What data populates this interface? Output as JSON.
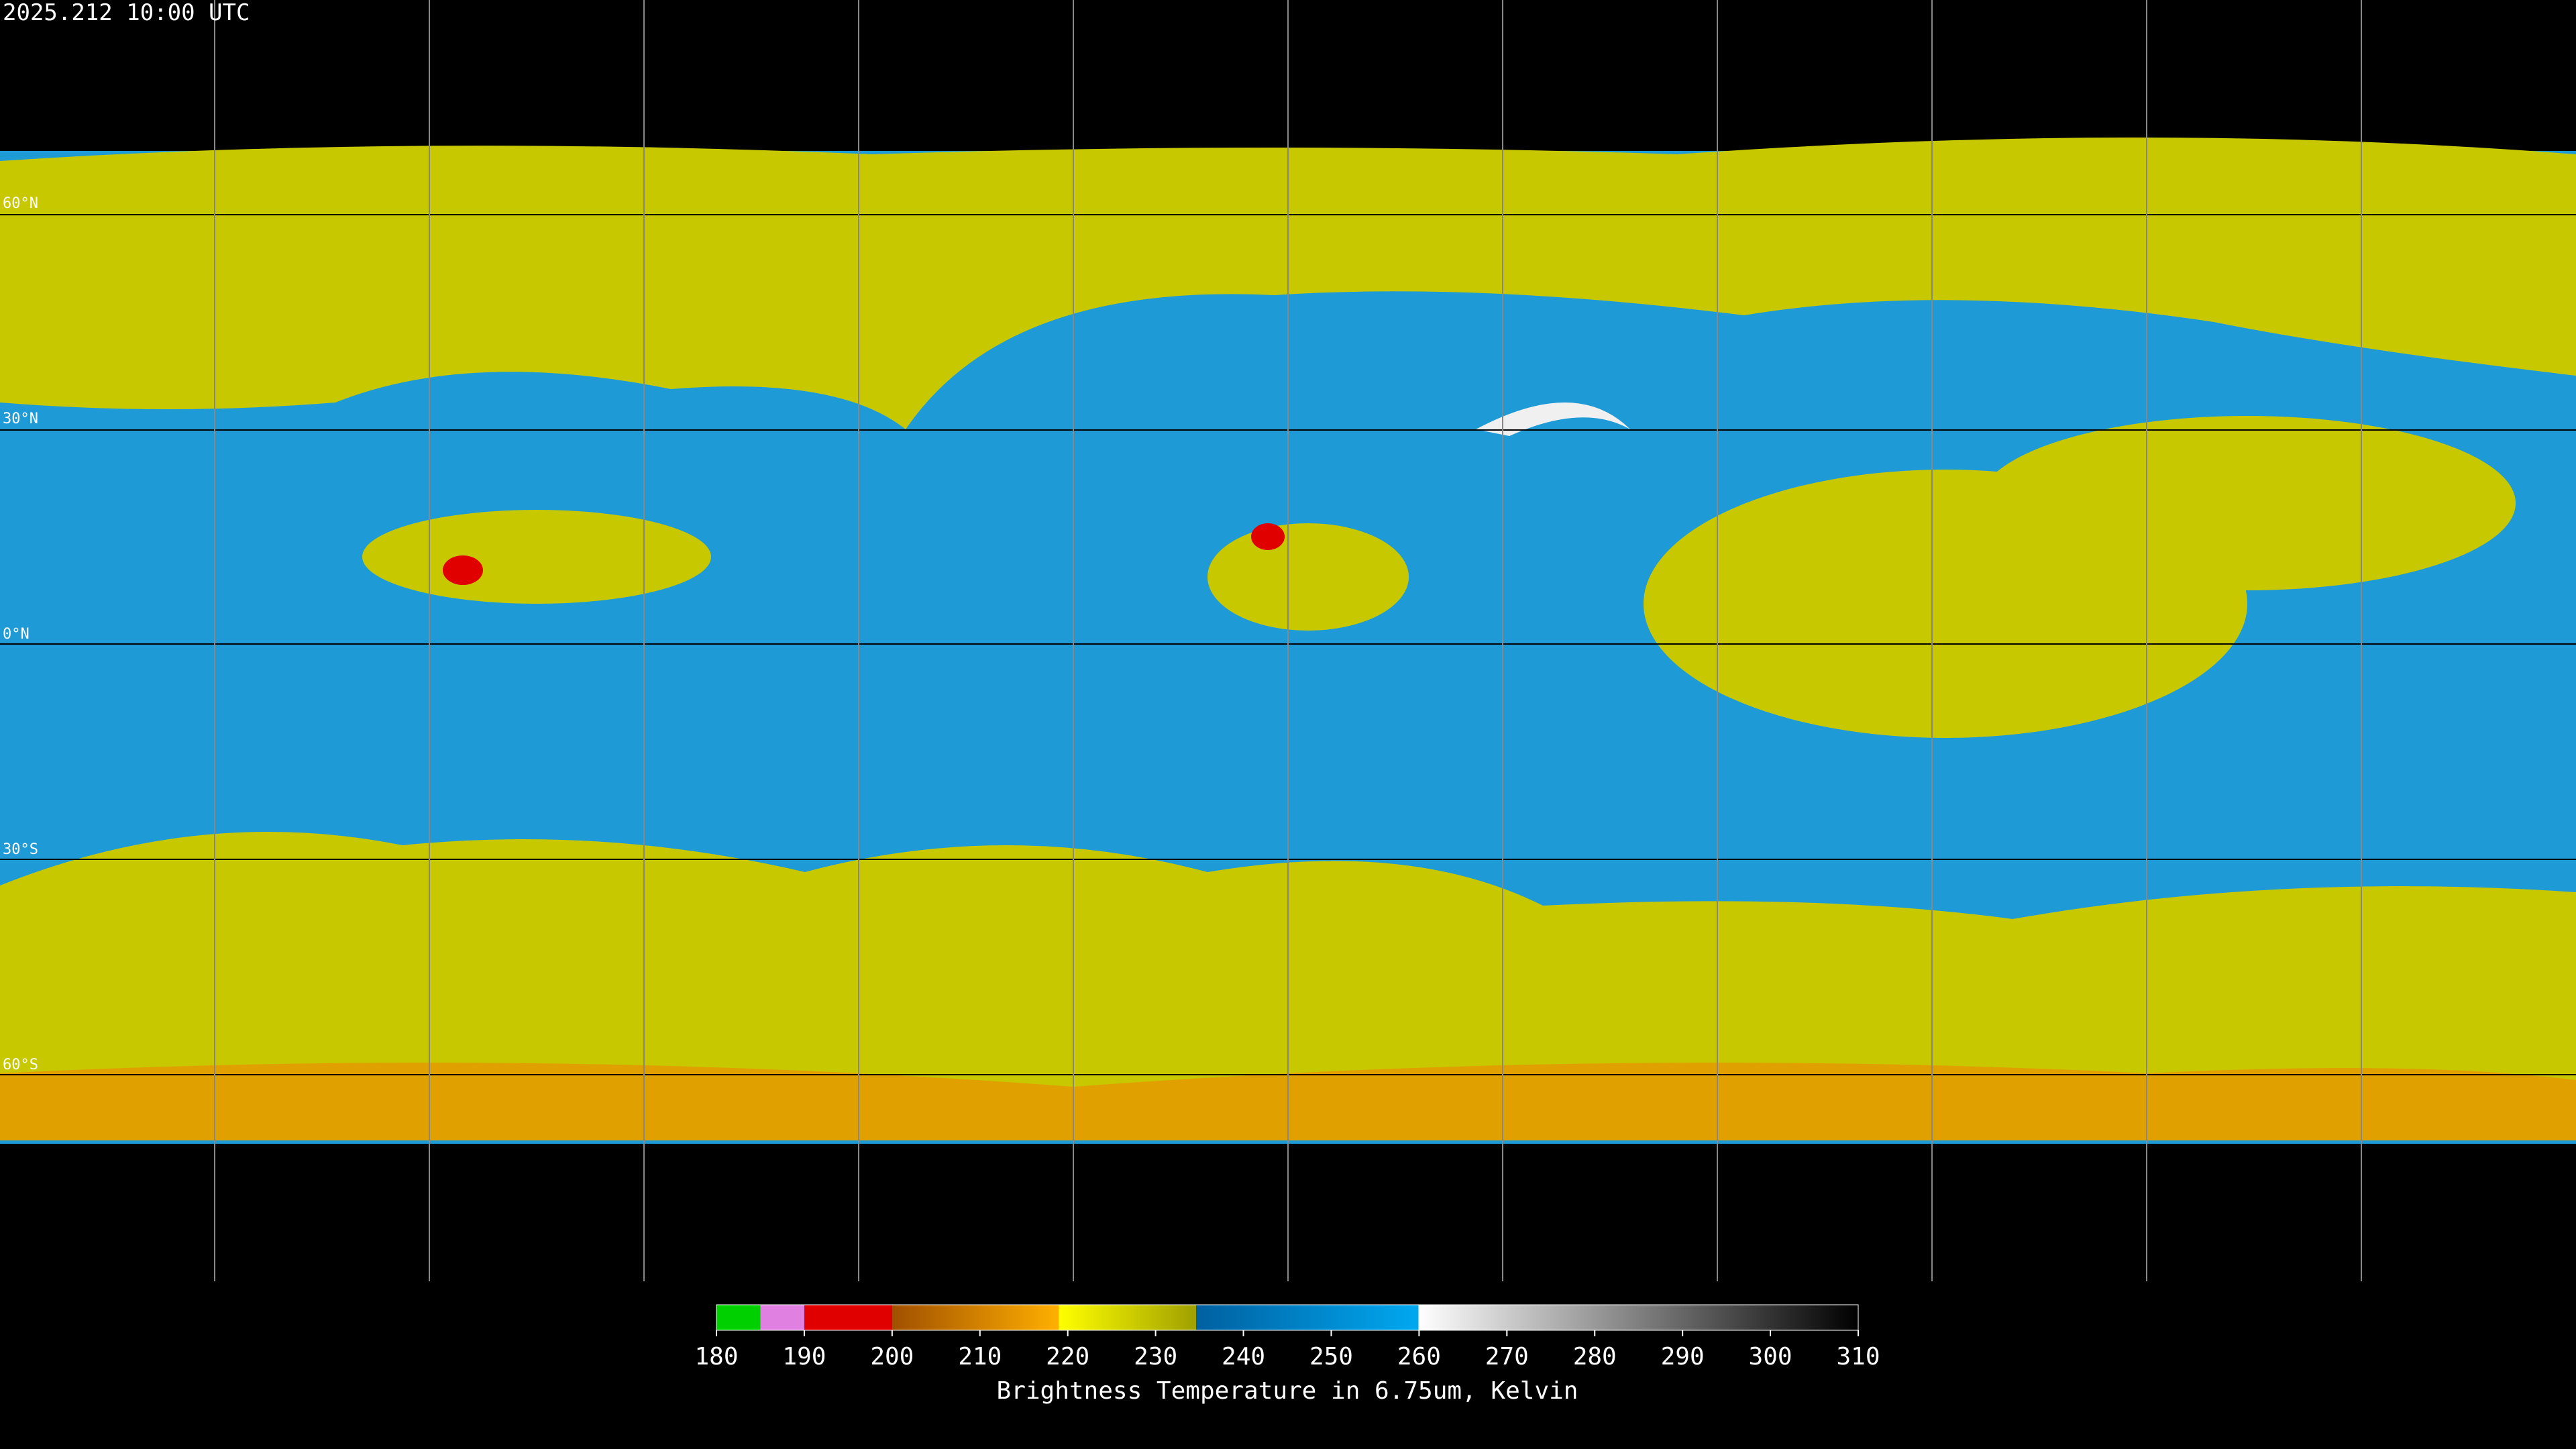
{
  "timestamp": "2025.212 10:00 UTC",
  "latitude_labels": [
    {
      "lat": 60,
      "label": "60°N"
    },
    {
      "lat": 30,
      "label": "30°N"
    },
    {
      "lat": 0,
      "label": "0°N"
    },
    {
      "lat": -30,
      "label": "30°S"
    },
    {
      "lat": -60,
      "label": "60°S"
    }
  ],
  "colorbar": {
    "range": [
      180,
      310
    ],
    "ticks": [
      180,
      190,
      200,
      210,
      220,
      230,
      240,
      250,
      260,
      270,
      280,
      290,
      300,
      310
    ],
    "title": "Brightness Temperature in 6.75um, Kelvin"
  }
}
